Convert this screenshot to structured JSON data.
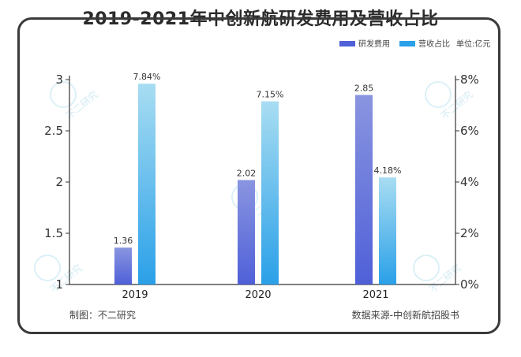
{
  "title": "2019-2021年中创新航研发费用及营收占比",
  "unit_label": "单位:亿元",
  "footer": {
    "made_by": "制图：不二研究",
    "source": "数据来源-中创新航招股书"
  },
  "watermark_text": "不二研究",
  "colors": {
    "rd_top": "#8a95e0",
    "rd_bottom": "#4f60d8",
    "ratio_top": "#a8ddf2",
    "ratio_bottom": "#2aa0e8",
    "axis": "#333333"
  },
  "chart_data": {
    "type": "bar",
    "categories": [
      "2019",
      "2020",
      "2021"
    ],
    "series": [
      {
        "name": "研发费用",
        "axis": "left",
        "values": [
          1.36,
          2.02,
          2.85
        ],
        "labels": [
          "1.36",
          "2.02",
          "2.85"
        ]
      },
      {
        "name": "营收占比",
        "axis": "right",
        "values": [
          7.84,
          7.15,
          4.18
        ],
        "labels": [
          "7.84%",
          "7.15%",
          "4.18%"
        ]
      }
    ],
    "left_axis": {
      "min": 1,
      "max": 3,
      "ticks": [
        "1",
        "1.5",
        "2",
        "2.5",
        "3"
      ],
      "tick_values": [
        1,
        1.5,
        2,
        2.5,
        3
      ]
    },
    "right_axis": {
      "min": 0,
      "max": 8,
      "ticks": [
        "0%",
        "2%",
        "4%",
        "6%",
        "8%"
      ],
      "tick_values": [
        0,
        2,
        4,
        6,
        8
      ]
    },
    "legend": [
      "研发费用",
      "营收占比"
    ]
  }
}
